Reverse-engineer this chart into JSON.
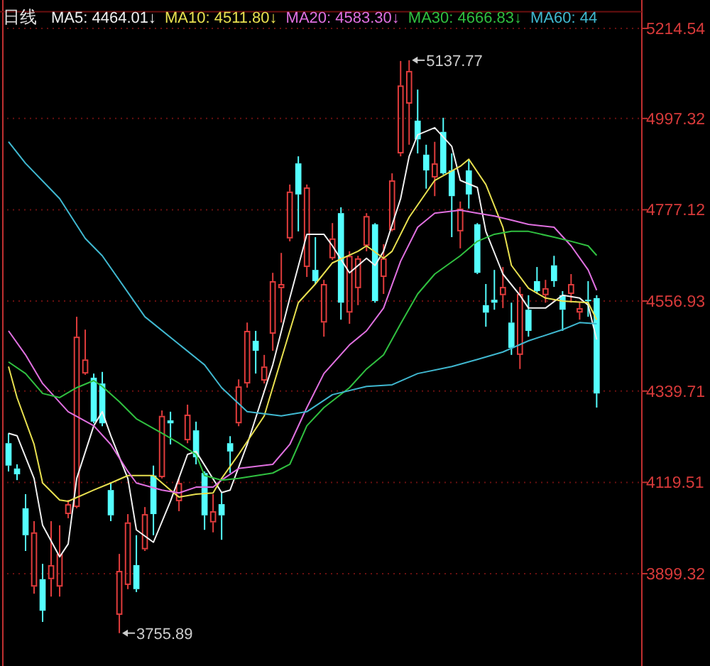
{
  "chart_data": {
    "type": "candlestick",
    "title": "日线",
    "categories": [
      null,
      null,
      null,
      null,
      null,
      null,
      null,
      null,
      null,
      null,
      null,
      null,
      null,
      null,
      null,
      null,
      null,
      null,
      null,
      null,
      null,
      null,
      null,
      null,
      null,
      null,
      null,
      null,
      null,
      null,
      null,
      null,
      null,
      null,
      null,
      null,
      null,
      null,
      null,
      null,
      null,
      null,
      null,
      null,
      null,
      null,
      null,
      null,
      null,
      null,
      null,
      null,
      null,
      null,
      null,
      null,
      null,
      null,
      null,
      null,
      null,
      null,
      null,
      null,
      null,
      null,
      null,
      null,
      null,
      null
    ],
    "ohlc": [
      [
        4214,
        4238,
        4146,
        4160
      ],
      [
        4153,
        4163,
        4125,
        4139
      ],
      [
        4057,
        4091,
        3954,
        3992
      ],
      [
        3868,
        4026,
        3851,
        3999
      ],
      [
        3886,
        3923,
        3783,
        3810
      ],
      [
        3886,
        4026,
        3844,
        3920
      ],
      [
        3868,
        4016,
        3844,
        3947
      ],
      [
        4043,
        4077,
        4033,
        4067
      ],
      [
        4060,
        4519,
        4057,
        4471
      ],
      [
        4382,
        4488,
        4379,
        4416
      ],
      [
        4372,
        4382,
        4262,
        4266
      ],
      [
        4358,
        4386,
        4255,
        4262
      ],
      [
        4101,
        4118,
        4026,
        4040
      ],
      [
        3800,
        3947,
        3755.89,
        3906
      ],
      [
        3872,
        4043,
        3862,
        4023
      ],
      [
        3920,
        3992,
        3855,
        3862
      ],
      [
        3958,
        4060,
        3954,
        4043
      ],
      [
        4136,
        4160,
        3992,
        4043
      ],
      [
        4132,
        4293,
        4129,
        4280
      ],
      [
        4269,
        4290,
        4211,
        4262
      ],
      [
        4074,
        4129,
        4050,
        4118
      ],
      [
        4221,
        4307,
        4214,
        4283
      ],
      [
        4245,
        4266,
        4163,
        4180
      ],
      [
        4142,
        4146,
        4005,
        4040
      ],
      [
        4023,
        4091,
        3999,
        4050
      ],
      [
        4067,
        4094,
        3981,
        4040
      ],
      [
        4214,
        4231,
        4142,
        4194
      ],
      [
        4262,
        4368,
        4255,
        4351
      ],
      [
        4358,
        4505,
        4348,
        4485
      ],
      [
        4461,
        4485,
        4382,
        4437
      ],
      [
        4365,
        4427,
        4358,
        4399
      ],
      [
        4478,
        4625,
        4437,
        4605
      ],
      [
        4588,
        4673,
        4505,
        4598
      ],
      [
        4708,
        4838,
        4701,
        4821
      ],
      [
        4889,
        4906,
        4725,
        4814
      ],
      [
        4639,
        4838,
        4615,
        4831
      ],
      [
        4632,
        4711,
        4598,
        4605
      ],
      [
        4505,
        4608,
        4471,
        4598
      ],
      [
        4660,
        4745,
        4656,
        4708
      ],
      [
        4769,
        4783,
        4512,
        4553
      ],
      [
        4529,
        4677,
        4502,
        4666
      ],
      [
        4588,
        4666,
        4547,
        4660
      ],
      [
        4690,
        4769,
        4677,
        4762
      ],
      [
        4742,
        4745,
        4553,
        4557
      ],
      [
        4615,
        4694,
        4574,
        4660
      ],
      [
        4728,
        4865,
        4725,
        4848
      ],
      [
        4913,
        5136,
        4906,
        5077
      ],
      [
        5033,
        5137.77,
        4934,
        5112
      ],
      [
        4992,
        5067,
        4913,
        4947
      ],
      [
        4910,
        4934,
        4828,
        4872
      ],
      [
        4855,
        4941,
        4810,
        4889
      ],
      [
        4965,
        4999,
        4862,
        4865
      ],
      [
        4872,
        4913,
        4711,
        4810
      ],
      [
        4725,
        4797,
        4684,
        4780
      ],
      [
        4872,
        4899,
        4780,
        4814
      ],
      [
        4742,
        4745,
        4622,
        4625
      ],
      [
        4547,
        4598,
        4495,
        4529
      ],
      [
        4560,
        4632,
        4536,
        4553
      ],
      [
        4571,
        4639,
        4540,
        4591
      ],
      [
        4505,
        4553,
        4427,
        4444
      ],
      [
        4427,
        4591,
        4393,
        4574
      ],
      [
        4536,
        4571,
        4471,
        4485
      ],
      [
        4605,
        4639,
        4574,
        4581
      ],
      [
        4571,
        4608,
        4553,
        4588
      ],
      [
        4643,
        4666,
        4591,
        4605
      ],
      [
        4571,
        4581,
        4485,
        4536
      ],
      [
        4574,
        4622,
        4553,
        4598
      ],
      [
        4529,
        4553,
        4512,
        4540
      ],
      [
        4560,
        4605,
        4519,
        4557
      ],
      [
        4564,
        4571,
        4300,
        4334
      ]
    ],
    "colors": [
      "#54ffff",
      "#54ffff",
      "#54ffff",
      "#e03c3c",
      "#54ffff",
      "#e03c3c",
      "#e03c3c",
      "#e03c3c",
      "#e03c3c",
      "#e03c3c",
      "#54ffff",
      "#54ffff",
      "#54ffff",
      "#e03c3c",
      "#e03c3c",
      "#54ffff",
      "#e03c3c",
      "#54ffff",
      "#e03c3c",
      "#54ffff",
      "#e03c3c",
      "#e03c3c",
      "#54ffff",
      "#54ffff",
      "#e03c3c",
      "#54ffff",
      "#54ffff",
      "#e03c3c",
      "#e03c3c",
      "#54ffff",
      "#e03c3c",
      "#e03c3c",
      "#e03c3c",
      "#e03c3c",
      "#54ffff",
      "#e03c3c",
      "#54ffff",
      "#e03c3c",
      "#e03c3c",
      "#54ffff",
      "#e03c3c",
      "#e03c3c",
      "#e03c3c",
      "#54ffff",
      "#e03c3c",
      "#e03c3c",
      "#e03c3c",
      "#e03c3c",
      "#54ffff",
      "#54ffff",
      "#e03c3c",
      "#54ffff",
      "#54ffff",
      "#e03c3c",
      "#54ffff",
      "#54ffff",
      "#54ffff",
      "#54ffff",
      "#e03c3c",
      "#54ffff",
      "#e03c3c",
      "#54ffff",
      "#54ffff",
      "#e03c3c",
      "#54ffff",
      "#54ffff",
      "#e03c3c",
      "#e03c3c",
      "#54ffff",
      "#54ffff"
    ],
    "series": [
      {
        "name": "MA5: 4464.01↓",
        "type": "line",
        "color": "#f0f0f0",
        "values": [
          4238,
          4232,
          null,
          4129,
          4016,
          null,
          3940,
          3971,
          4129,
          null,
          4256,
          4290,
          4232,
          null,
          4129,
          4005,
          null,
          3975,
          null,
          4074,
          null,
          4187,
          4194,
          null,
          null,
          4095,
          4101,
          null,
          4211,
          null,
          null,
          4403,
          null,
          4564,
          null,
          4718,
          null,
          4718,
          4690,
          null,
          4625,
          null,
          4660,
          4643,
          4677,
          null,
          4804,
          4906,
          4958,
          null,
          4975,
          null,
          4930,
          4848,
          null,
          4831,
          4725,
          null,
          4622,
          null,
          4571,
          4540,
          null,
          4540,
          null,
          4571,
          null,
          4564,
          4547,
          4464
        ]
      },
      {
        "name": "MA10: 4511.80↓",
        "type": "line",
        "color": "#e8e050",
        "values": [
          4399,
          4324,
          null,
          4211,
          4118,
          null,
          4077,
          4074,
          null,
          null,
          4101,
          null,
          4118,
          null,
          4136,
          null,
          null,
          4136,
          null,
          4101,
          4084,
          null,
          4091,
          null,
          4094,
          4129,
          null,
          4187,
          null,
          null,
          4280,
          null,
          4417,
          null,
          4553,
          null,
          4598,
          null,
          4649,
          null,
          null,
          4677,
          4690,
          null,
          4660,
          4677,
          null,
          4759,
          null,
          null,
          4848,
          null,
          null,
          4882,
          4899,
          null,
          4838,
          null,
          4735,
          4643,
          null,
          4588,
          null,
          4564,
          null,
          4557,
          null,
          null,
          4553,
          4512
        ]
      },
      {
        "name": "MA20: 4583.30↓",
        "type": "line",
        "color": "#e070e0",
        "values": [
          4485,
          null,
          4427,
          null,
          4358,
          null,
          null,
          4290,
          null,
          null,
          4256,
          null,
          4211,
          null,
          4146,
          4118,
          null,
          null,
          4101,
          null,
          4094,
          null,
          4108,
          null,
          4108,
          4125,
          null,
          4153,
          null,
          null,
          null,
          4163,
          null,
          4211,
          null,
          4300,
          null,
          4382,
          null,
          null,
          4451,
          null,
          4485,
          null,
          4540,
          null,
          4653,
          null,
          4735,
          null,
          4769,
          null,
          null,
          4776,
          null,
          4769,
          null,
          4762,
          null,
          4752,
          null,
          4742,
          null,
          null,
          4735,
          null,
          4690,
          null,
          4632,
          4583
        ]
      },
      {
        "name": "MA30: 4666.83↓",
        "type": "line",
        "color": "#30c040",
        "values": [
          4410,
          null,
          4382,
          null,
          4334,
          null,
          4324,
          null,
          4348,
          null,
          4365,
          4351,
          null,
          4314,
          null,
          4273,
          null,
          null,
          4238,
          null,
          4214,
          null,
          4187,
          4136,
          null,
          4125,
          null,
          4129,
          null,
          null,
          null,
          4142,
          null,
          4163,
          null,
          4256,
          null,
          4300,
          null,
          null,
          4348,
          null,
          4393,
          null,
          4427,
          null,
          4502,
          null,
          4574,
          null,
          4622,
          null,
          null,
          4666,
          null,
          4701,
          null,
          4718,
          null,
          4725,
          null,
          4725,
          null,
          null,
          4711,
          null,
          4701,
          null,
          4690,
          4667
        ]
      },
      {
        "name": "MA60: 44",
        "type": "line",
        "color": "#40b8d0",
        "values": [
          4941,
          null,
          4889,
          null,
          null,
          null,
          4804,
          null,
          null,
          4708,
          null,
          4666,
          null,
          null,
          null,
          null,
          4519,
          null,
          null,
          null,
          null,
          null,
          null,
          4403,
          null,
          4348,
          null,
          null,
          4290,
          null,
          null,
          null,
          4280,
          null,
          null,
          4290,
          null,
          null,
          4331,
          null,
          null,
          null,
          4351,
          null,
          null,
          4355,
          null,
          null,
          4382,
          null,
          null,
          null,
          4399,
          null,
          null,
          4416,
          null,
          null,
          4434,
          null,
          null,
          4461,
          null,
          null,
          null,
          4488,
          null,
          4505,
          null,
          4502
        ]
      }
    ],
    "ylim": [
      3680,
      5255
    ],
    "yticks": [
      {
        "value": 5214.54,
        "label": "5214.54"
      },
      {
        "value": 4997.32,
        "label": "4997.32"
      },
      {
        "value": 4777.12,
        "label": "4777.12"
      },
      {
        "value": 4556.93,
        "label": "4556.93"
      },
      {
        "value": 4339.71,
        "label": "4339.71"
      },
      {
        "value": 4119.51,
        "label": "4119.51"
      },
      {
        "value": 3899.32,
        "label": "3899.32"
      }
    ],
    "annotations": [
      "5137.77",
      "3755.89"
    ],
    "grid": "y",
    "legend": "top left",
    "tick_labels": "y"
  }
}
